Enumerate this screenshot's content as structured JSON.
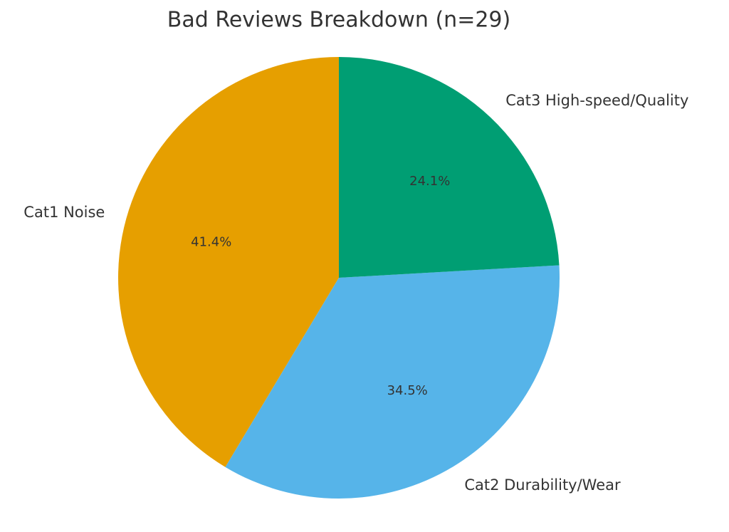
{
  "chart_data": {
    "type": "pie",
    "title": "Bad Reviews Breakdown (n=29)",
    "categories": [
      "Cat1 Noise",
      "Cat2 Durability/Wear",
      "Cat3 High-speed/Quality"
    ],
    "values": [
      41.4,
      34.5,
      24.1
    ],
    "value_labels": [
      "41.4%",
      "34.5%",
      "24.1%"
    ],
    "colors": [
      "#e69f00",
      "#56b4e9",
      "#009e73"
    ]
  }
}
